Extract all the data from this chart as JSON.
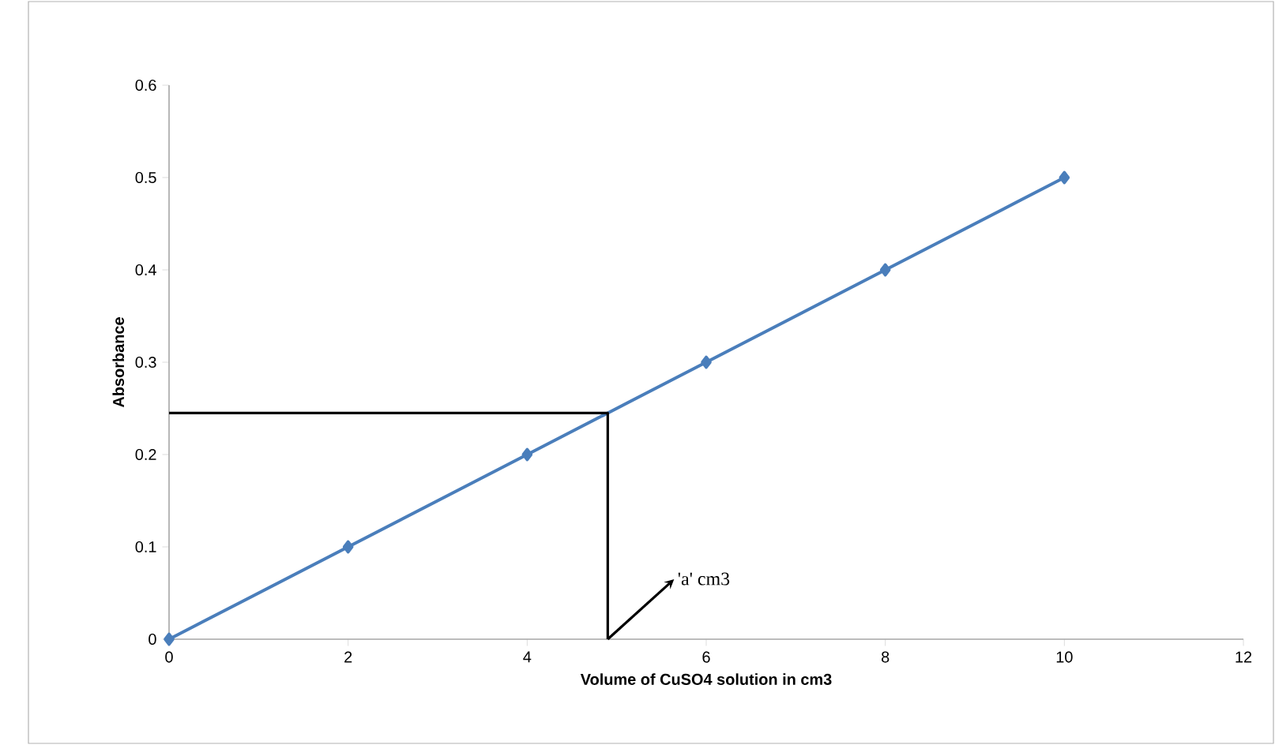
{
  "chart_data": {
    "type": "line",
    "xlabel": "Volume of CuSO4 solution in cm3",
    "ylabel": "Absorbance",
    "series": [
      {
        "color": "#4a7ebb",
        "x": [
          0,
          2,
          4,
          6,
          8,
          10
        ],
        "values": [
          0,
          0.1,
          0.2,
          0.3,
          0.4,
          0.5
        ],
        "marker": "diamond",
        "line_style": "solid"
      },
      {
        "type": "line",
        "color": "#000000",
        "x": [
          0,
          4.9,
          4.9
        ],
        "values": [
          0.245,
          0.245,
          0
        ],
        "marker": "none",
        "line_style": "solid"
      }
    ],
    "xlim": [
      0,
      12
    ],
    "ylim": [
      0,
      0.6
    ],
    "xticks": [
      0,
      2,
      4,
      6,
      8,
      10,
      12
    ],
    "yticks": [
      0,
      0.1,
      0.2,
      0.3,
      0.4,
      0.5,
      0.6
    ],
    "annotations": [
      {
        "text": "'a' cm3",
        "x": 4.9,
        "y": 0
      }
    ],
    "grid": false
  }
}
